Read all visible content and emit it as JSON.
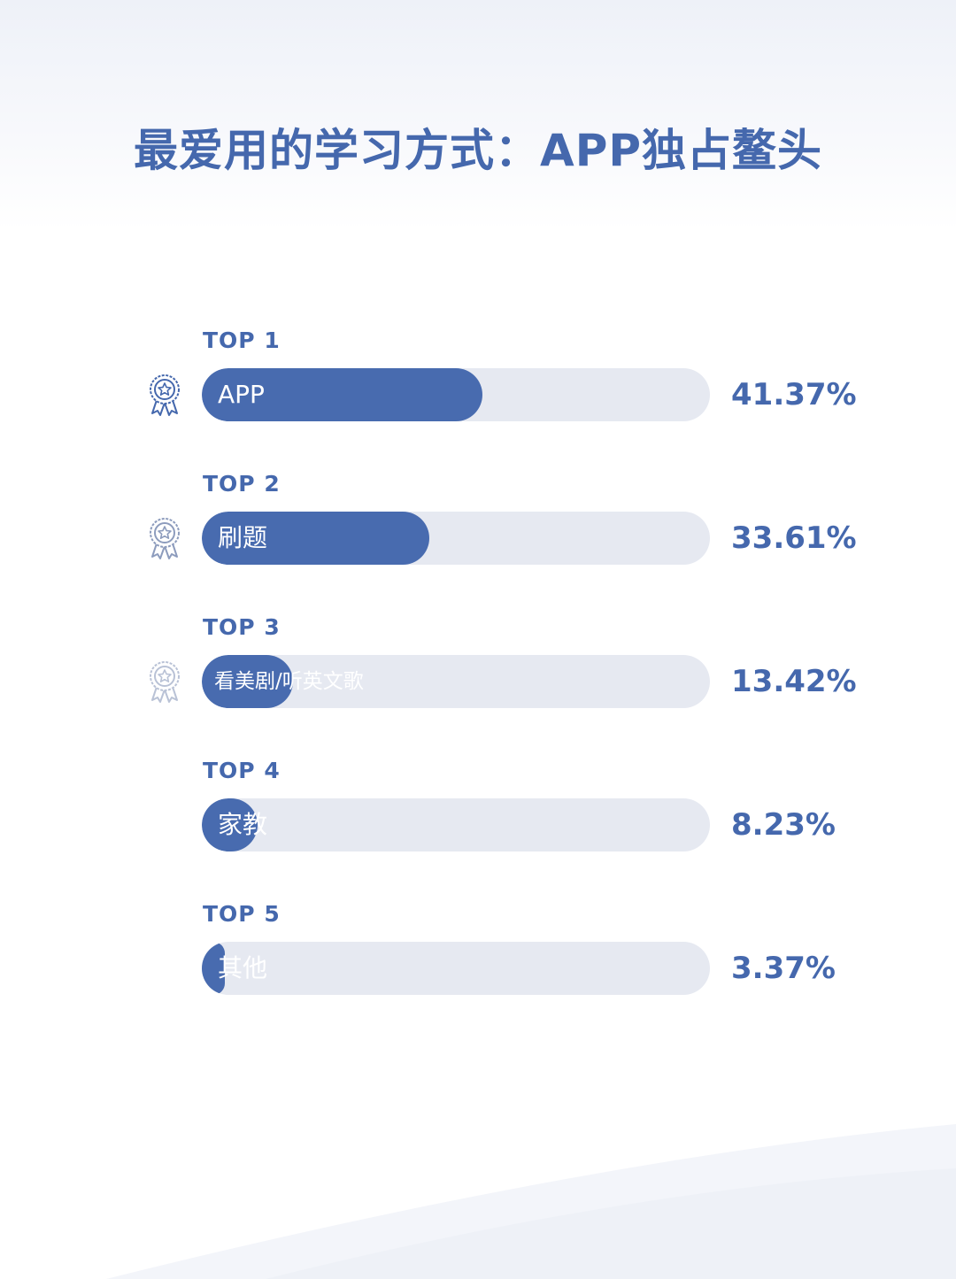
{
  "title": "最爱用的学习方式：APP独占鳌头",
  "chart_data": {
    "type": "bar",
    "orientation": "horizontal",
    "title": "最爱用的学习方式：APP独占鳌头",
    "ranks": [
      "TOP 1",
      "TOP 2",
      "TOP 3",
      "TOP 4",
      "TOP 5"
    ],
    "categories": [
      "APP",
      "刷题",
      "看美剧/听英文歌",
      "家教",
      "其他"
    ],
    "values": [
      41.37,
      33.61,
      13.42,
      8.23,
      3.37
    ],
    "value_labels": [
      "41.37%",
      "33.61%",
      "13.42%",
      "8.23%",
      "3.37%"
    ],
    "medals": [
      "medal-gold",
      "medal-silver",
      "medal-bronze",
      "",
      ""
    ],
    "unit": "%",
    "grid": false,
    "legend": "none"
  },
  "colors": {
    "accent": "#4568ad",
    "bar_fill": "#486baf",
    "bar_track": "#e6e9f1",
    "medal_1": "#4568ad",
    "medal_2": "#8d9cbd",
    "medal_3": "#b9c2d6"
  }
}
